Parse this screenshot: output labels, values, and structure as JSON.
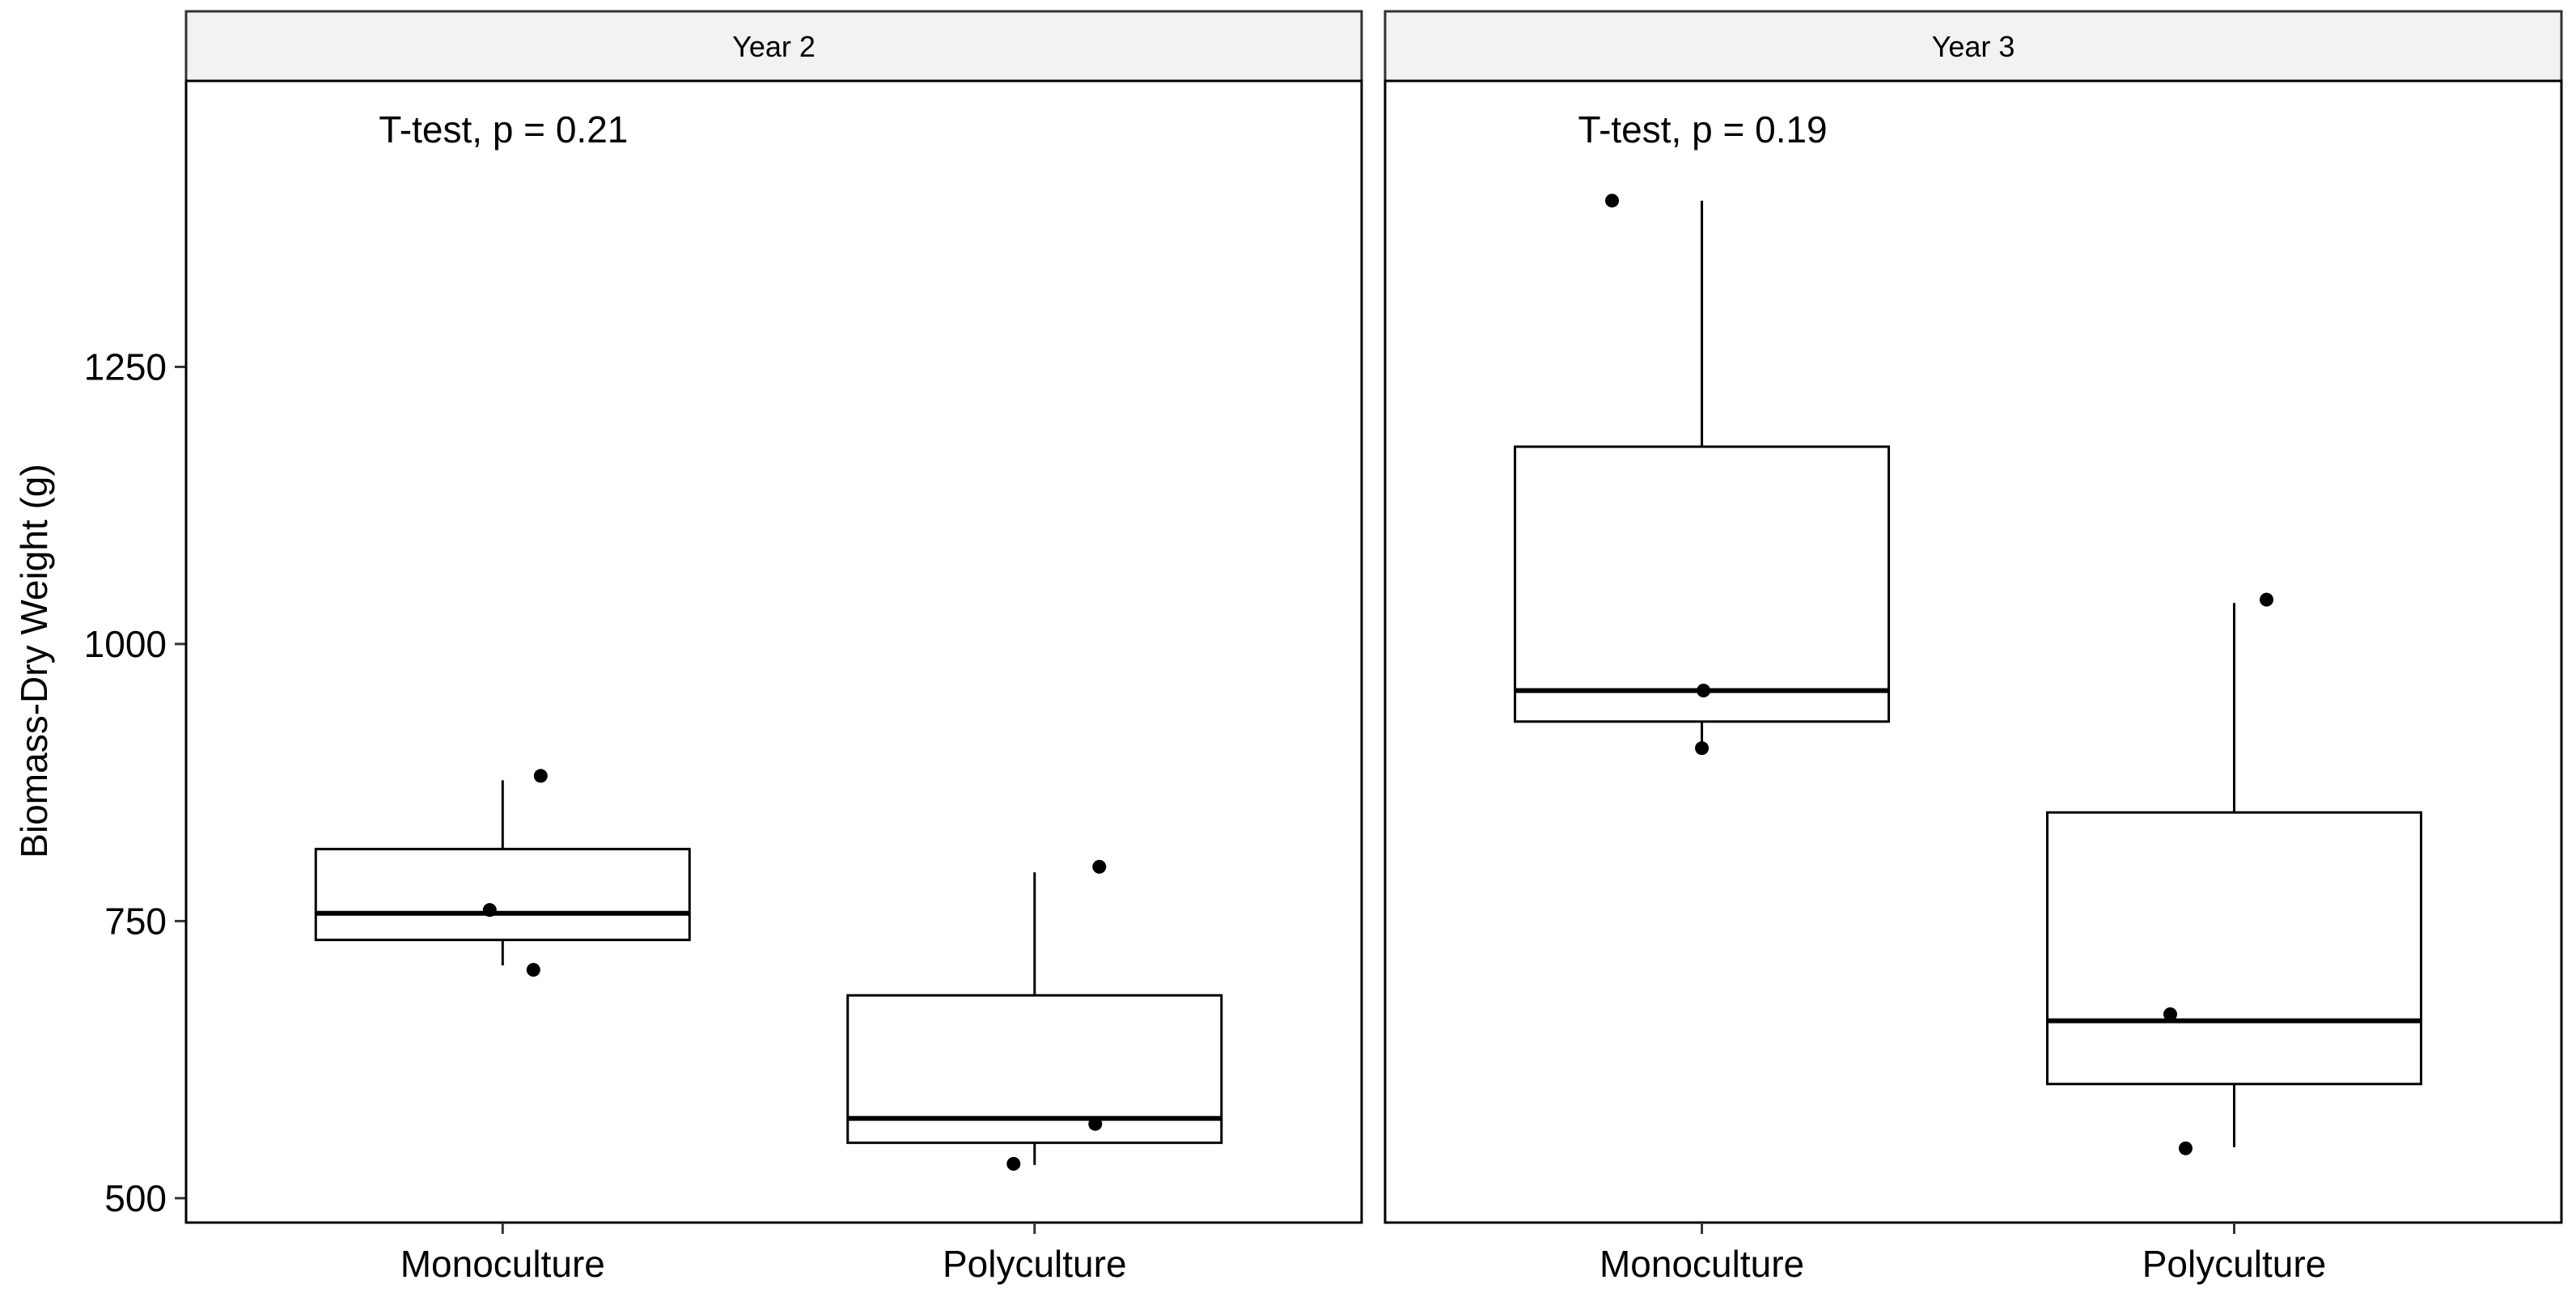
{
  "chart_data": {
    "type": "boxplot",
    "ylabel": "Biomass-Dry Weight (g)",
    "xlabel": "",
    "ylim": [
      478,
      1508
    ],
    "yticks": [
      500,
      750,
      1000,
      1250
    ],
    "yticklabels": [
      "500",
      "750",
      "1000",
      "1250"
    ],
    "categories": [
      "Monoculture",
      "Polyculture"
    ],
    "grid": false,
    "panels": [
      {
        "strip": "Year 2",
        "annotation": "T-test, p = 0.21",
        "groups": [
          {
            "category": "Monoculture",
            "min": 710,
            "q1": 733,
            "median": 757,
            "q3": 815,
            "max": 877,
            "points": [
              760,
              706,
              881
            ]
          },
          {
            "category": "Polyculture",
            "min": 530,
            "q1": 550,
            "median": 572,
            "q3": 683,
            "max": 794,
            "points": [
              531,
              567,
              799
            ]
          }
        ]
      },
      {
        "strip": "Year 3",
        "annotation": "T-test, p = 0.19",
        "groups": [
          {
            "category": "Monoculture",
            "min": 906,
            "q1": 930,
            "median": 958,
            "q3": 1178,
            "max": 1400,
            "points": [
              906,
              958,
              1400
            ]
          },
          {
            "category": "Polyculture",
            "min": 546,
            "q1": 603,
            "median": 660,
            "q3": 848,
            "max": 1037,
            "points": [
              545,
              666,
              1040
            ]
          }
        ]
      }
    ]
  }
}
